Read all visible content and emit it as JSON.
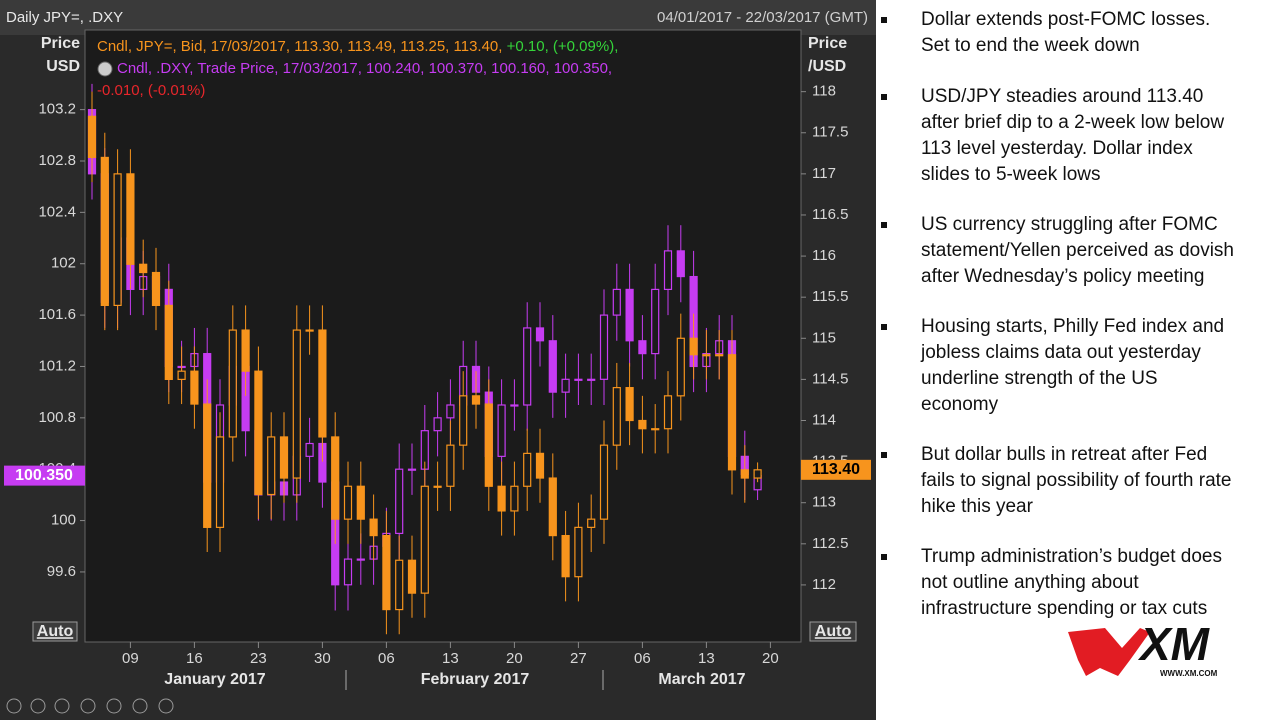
{
  "chart_data": {
    "type": "candlestick",
    "title": "Daily JPY=, .DXY",
    "date_range": "04/01/2017 - 22/03/2017 (GMT)",
    "y_label": [
      "Price",
      "USD"
    ],
    "y2_label": [
      "Price",
      "/USD"
    ],
    "auto_button": "Auto",
    "legend": [
      [
        {
          "text": "Cndl, JPY=, Bid, 17/03/2017, 113.30, 113.49, 113.25, 113.40, ",
          "color": "#f7941d"
        },
        {
          "text": "+0.10, (+0.09%),",
          "color": "#35d43a"
        }
      ],
      [
        {
          "text": "Cndl, .DXY, Trade Price, 17/03/2017, 100.240, 100.370, 100.160, 100.350,",
          "color": "#c63cf2"
        }
      ],
      [
        {
          "text": "-0.010, (-0.01%)",
          "color": "#e8262b"
        }
      ]
    ],
    "x": [
      "2017-01-04",
      "2017-01-05",
      "2017-01-06",
      "2017-01-09",
      "2017-01-10",
      "2017-01-11",
      "2017-01-12",
      "2017-01-13",
      "2017-01-16",
      "2017-01-17",
      "2017-01-18",
      "2017-01-19",
      "2017-01-20",
      "2017-01-23",
      "2017-01-24",
      "2017-01-25",
      "2017-01-26",
      "2017-01-27",
      "2017-01-30",
      "2017-01-31",
      "2017-02-01",
      "2017-02-02",
      "2017-02-03",
      "2017-02-06",
      "2017-02-07",
      "2017-02-08",
      "2017-02-09",
      "2017-02-10",
      "2017-02-13",
      "2017-02-14",
      "2017-02-15",
      "2017-02-16",
      "2017-02-17",
      "2017-02-20",
      "2017-02-21",
      "2017-02-22",
      "2017-02-23",
      "2017-02-24",
      "2017-02-27",
      "2017-02-28",
      "2017-03-01",
      "2017-03-02",
      "2017-03-03",
      "2017-03-06",
      "2017-03-07",
      "2017-03-08",
      "2017-03-09",
      "2017-03-10",
      "2017-03-13",
      "2017-03-14",
      "2017-03-15",
      "2017-03-16",
      "2017-03-17"
    ],
    "xticks": [
      {
        "value": "2017-01-09",
        "label": "09"
      },
      {
        "value": "2017-01-16",
        "label": "16"
      },
      {
        "value": "2017-01-23",
        "label": "23"
      },
      {
        "value": "2017-01-30",
        "label": "30"
      },
      {
        "value": "2017-02-06",
        "label": "06"
      },
      {
        "value": "2017-02-13",
        "label": "13"
      },
      {
        "value": "2017-02-20",
        "label": "20"
      },
      {
        "value": "2017-02-27",
        "label": "27"
      },
      {
        "value": "2017-03-06",
        "label": "06"
      },
      {
        "value": "2017-03-13",
        "label": "13"
      },
      {
        "value": "2017-03-20",
        "label": "20"
      }
    ],
    "months": [
      "January 2017",
      "February 2017",
      "March 2017"
    ],
    "ylim": [
      99.07,
      103.82
    ],
    "yticks": [
      99.6,
      100,
      100.4,
      100.8,
      101.2,
      101.6,
      102,
      102.4,
      102.8,
      103.2
    ],
    "y2lim": [
      111.33,
      118.75
    ],
    "y2ticks": [
      112,
      112.5,
      113,
      113.5,
      114,
      114.5,
      115,
      115.5,
      116,
      116.5,
      117,
      117.5,
      118
    ],
    "series": [
      {
        "axis": "y",
        "color": "#c63cf2",
        "last_value_label": "100.350",
        "open": [
          103.2,
          102.7,
          101.7,
          102.2,
          101.8,
          101.9,
          101.8,
          101.2,
          101.2,
          101.3,
          100.3,
          100.9,
          101.2,
          100.7,
          100.2,
          100.3,
          100.2,
          100.5,
          100.6,
          100.3,
          99.5,
          99.7,
          99.7,
          99.8,
          99.9,
          100.4,
          100.4,
          100.7,
          100.8,
          100.9,
          101.2,
          101.0,
          100.5,
          100.9,
          100.9,
          101.5,
          101.4,
          101.0,
          101.1,
          101.1,
          101.1,
          101.6,
          101.8,
          101.4,
          101.3,
          101.8,
          102.1,
          101.9,
          101.2,
          101.3,
          101.4,
          100.5,
          100.24
        ],
        "high": [
          103.4,
          102.9,
          102.4,
          102.4,
          102.1,
          102.1,
          102.0,
          101.4,
          101.5,
          101.5,
          101.1,
          101.4,
          101.4,
          100.9,
          100.5,
          100.5,
          100.7,
          100.8,
          100.8,
          100.5,
          99.9,
          99.9,
          100.0,
          100.1,
          100.6,
          100.6,
          100.9,
          101.0,
          101.1,
          101.4,
          101.4,
          101.2,
          101.1,
          101.1,
          101.7,
          101.7,
          101.6,
          101.3,
          101.3,
          101.3,
          101.8,
          102.0,
          102.0,
          101.6,
          102.0,
          102.3,
          102.3,
          102.1,
          101.5,
          101.6,
          101.6,
          100.7,
          100.37
        ],
        "low": [
          102.5,
          101.5,
          101.5,
          101.6,
          101.6,
          101.6,
          101.0,
          101.0,
          101.0,
          100.1,
          100.1,
          100.7,
          100.5,
          100.0,
          100.0,
          100.0,
          100.0,
          100.3,
          100.1,
          99.3,
          99.3,
          99.5,
          99.5,
          99.6,
          99.7,
          100.2,
          100.2,
          100.5,
          100.6,
          100.7,
          100.8,
          100.3,
          100.3,
          100.7,
          100.7,
          101.2,
          100.8,
          100.8,
          100.9,
          100.9,
          100.9,
          101.4,
          101.2,
          101.1,
          101.1,
          101.6,
          101.7,
          101.0,
          101.0,
          101.1,
          100.3,
          100.16,
          100.16
        ],
        "close": [
          102.7,
          101.7,
          102.2,
          101.8,
          101.9,
          101.8,
          101.2,
          101.2,
          101.3,
          100.3,
          100.9,
          101.2,
          100.7,
          100.2,
          100.3,
          100.2,
          100.5,
          100.6,
          100.3,
          99.5,
          99.7,
          99.7,
          99.8,
          99.9,
          100.4,
          100.4,
          100.7,
          100.8,
          100.9,
          101.2,
          101.0,
          100.5,
          100.9,
          100.9,
          101.5,
          101.4,
          101.0,
          101.1,
          101.1,
          101.1,
          101.6,
          101.8,
          101.4,
          101.3,
          101.8,
          102.1,
          101.9,
          101.2,
          101.3,
          101.4,
          100.5,
          100.36,
          100.35
        ]
      },
      {
        "axis": "y2",
        "color": "#f7941d",
        "last_value_label": "113.40",
        "open": [
          117.7,
          117.2,
          115.4,
          117.0,
          115.9,
          115.8,
          115.4,
          114.5,
          114.6,
          114.2,
          112.7,
          113.8,
          115.1,
          114.6,
          113.1,
          113.8,
          113.3,
          115.1,
          115.1,
          113.8,
          112.8,
          113.2,
          112.8,
          112.6,
          111.7,
          112.3,
          111.9,
          113.2,
          113.2,
          113.7,
          114.3,
          114.2,
          113.2,
          112.9,
          113.2,
          113.6,
          113.3,
          112.6,
          112.1,
          112.7,
          112.8,
          113.7,
          114.4,
          114.0,
          113.9,
          113.9,
          114.3,
          115.0,
          114.8,
          114.8,
          114.8,
          113.4,
          113.3
        ],
        "high": [
          118.0,
          117.5,
          117.3,
          117.3,
          116.2,
          116.1,
          115.7,
          114.9,
          114.9,
          114.5,
          114.1,
          115.4,
          115.4,
          114.9,
          114.1,
          114.1,
          115.4,
          115.4,
          115.4,
          114.1,
          113.5,
          113.5,
          113.1,
          112.9,
          112.6,
          112.6,
          113.5,
          113.5,
          114.0,
          114.6,
          114.6,
          114.5,
          113.5,
          113.5,
          113.9,
          113.9,
          113.6,
          112.9,
          113.0,
          113.1,
          114.0,
          114.7,
          114.7,
          114.3,
          114.2,
          114.6,
          115.3,
          115.3,
          115.1,
          115.1,
          115.1,
          113.7,
          113.49
        ],
        "low": [
          116.9,
          115.1,
          115.1,
          115.6,
          115.5,
          115.1,
          114.2,
          114.2,
          113.9,
          112.4,
          112.4,
          113.5,
          114.3,
          112.8,
          112.8,
          113.0,
          113.0,
          114.8,
          113.5,
          112.5,
          112.5,
          112.5,
          112.3,
          111.4,
          111.4,
          111.6,
          111.6,
          112.9,
          112.9,
          113.4,
          113.9,
          112.9,
          112.6,
          112.6,
          112.9,
          113.0,
          112.3,
          111.8,
          111.8,
          112.4,
          112.5,
          113.4,
          113.7,
          113.6,
          113.6,
          113.6,
          114.0,
          114.5,
          114.5,
          114.5,
          113.1,
          113.0,
          113.25
        ],
        "close": [
          117.2,
          115.4,
          117.0,
          115.9,
          115.8,
          115.4,
          114.5,
          114.6,
          114.2,
          112.7,
          113.8,
          115.1,
          114.6,
          113.1,
          113.8,
          113.3,
          115.1,
          115.1,
          113.8,
          112.8,
          113.2,
          112.8,
          112.6,
          111.7,
          112.3,
          111.9,
          113.2,
          113.2,
          113.7,
          114.3,
          114.2,
          113.2,
          112.9,
          113.2,
          113.6,
          113.3,
          112.6,
          112.1,
          112.7,
          112.8,
          113.7,
          114.4,
          114.0,
          113.9,
          113.9,
          114.3,
          115.0,
          114.8,
          114.8,
          114.8,
          113.4,
          113.3,
          113.4
        ]
      }
    ]
  },
  "bullets": [
    [
      "Dollar extends post-FOMC losses.",
      "Set to end the week down"
    ],
    [
      "USD/JPY steadies around 113.40",
      "after brief dip to a 2-week low below",
      "113 level yesterday. Dollar index",
      "slides to 5-week lows"
    ],
    [
      "US currency struggling after FOMC",
      "statement/Yellen perceived as dovish",
      "after Wednesday’s policy meeting"
    ],
    [
      "Housing starts, Philly Fed index and",
      "jobless claims data out yesterday",
      "underline strength of the US",
      "economy"
    ],
    [
      "But dollar bulls in retreat after Fed",
      "fails to signal possibility of fourth rate",
      "hike this year"
    ],
    [
      "Trump administration’s budget does",
      "not outline anything about",
      "infrastructure spending or tax cuts"
    ]
  ],
  "logo": {
    "text": "XM",
    "url": "WWW.XM.COM"
  }
}
